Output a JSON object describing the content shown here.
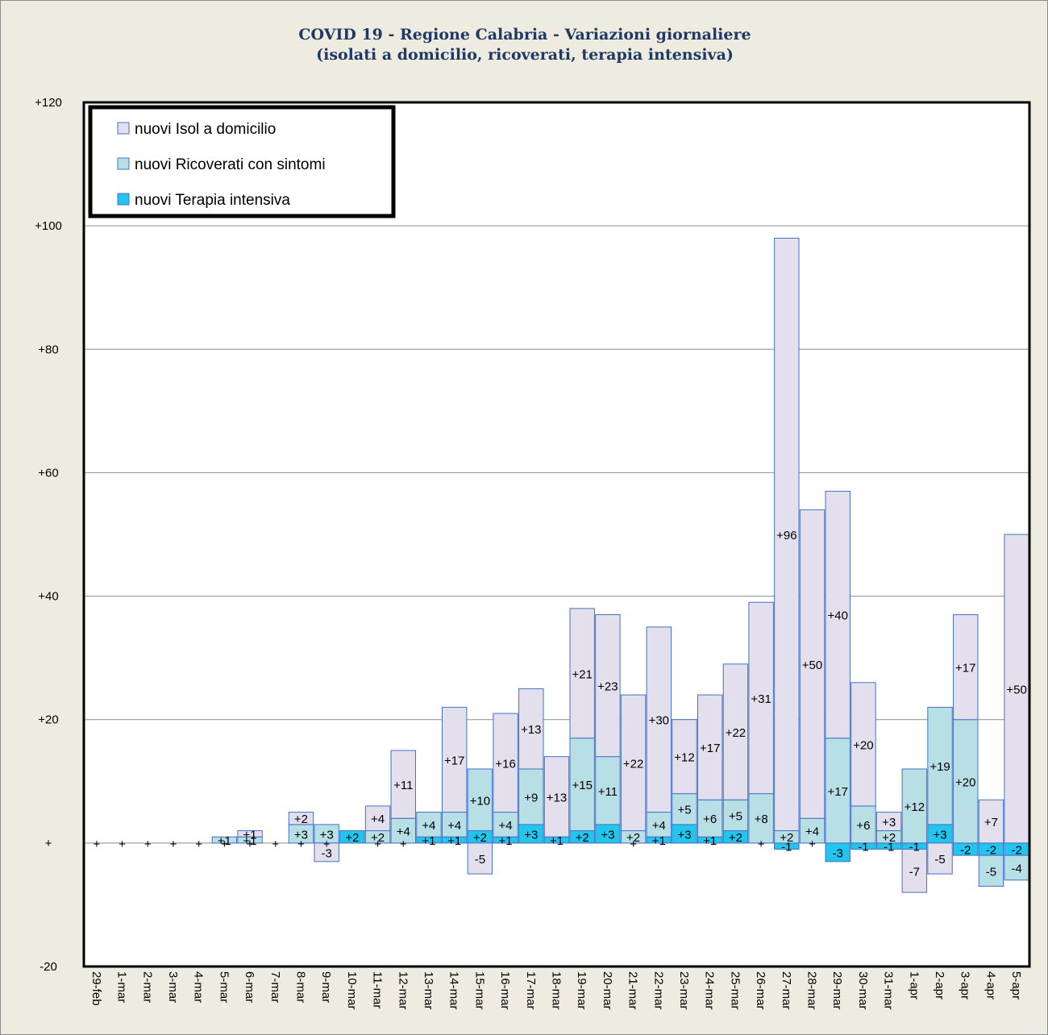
{
  "chart_data": {
    "type": "bar",
    "stacked": true,
    "title": "COVID 19 - Regione Calabria - Variazioni giornaliere",
    "subtitle": "(isolati a domicilio, ricoverati, terapia intensiva)",
    "ylim": [
      -20,
      120
    ],
    "yticks": [
      -20,
      0,
      20,
      40,
      60,
      80,
      100,
      120
    ],
    "ytick_labels": [
      "-20",
      "+",
      "+20",
      "+40",
      "+60",
      "+80",
      "+100",
      "+120"
    ],
    "grid": true,
    "legend_position": "top-left",
    "categories": [
      "29-feb",
      "1-mar",
      "2-mar",
      "3-mar",
      "4-mar",
      "5-mar",
      "6-mar",
      "7-mar",
      "8-mar",
      "9-mar",
      "10-mar",
      "11-mar",
      "12-mar",
      "13-mar",
      "14-mar",
      "15-mar",
      "16-mar",
      "17-mar",
      "18-mar",
      "19-mar",
      "20-mar",
      "21-mar",
      "22-mar",
      "23-mar",
      "24-mar",
      "25-mar",
      "26-mar",
      "27-mar",
      "28-mar",
      "29-mar",
      "30-mar",
      "31-mar",
      "1-apr",
      "2-apr",
      "3-apr",
      "4-apr",
      "5-apr"
    ],
    "series": [
      {
        "name": "nuovi Terapia intensiva",
        "color": "#22c5ee",
        "values": [
          0,
          0,
          0,
          0,
          0,
          0,
          0,
          0,
          0,
          0,
          2,
          0,
          0,
          1,
          1,
          2,
          1,
          3,
          1,
          2,
          3,
          0,
          1,
          3,
          1,
          2,
          0,
          -1,
          0,
          -3,
          -1,
          -1,
          -1,
          3,
          -2,
          -2,
          -2
        ],
        "labels": [
          "+",
          "+",
          "+",
          "+",
          "+",
          "+",
          "+",
          "+",
          "+",
          "+",
          "+2",
          "+",
          "+",
          "+1",
          "+1",
          "+2",
          "+1",
          "+3",
          "+1",
          "+2",
          "+3",
          "+",
          "+1",
          "+3",
          "+1",
          "+2",
          "+",
          "-1",
          "+",
          "-3",
          "-1",
          "-1",
          "-1",
          "+3",
          "-2",
          "-2",
          "-2"
        ]
      },
      {
        "name": "nuovi Ricoverati con sintomi",
        "color": "#b8dee6",
        "values": [
          0,
          0,
          0,
          0,
          0,
          1,
          1,
          0,
          3,
          3,
          0,
          2,
          4,
          4,
          4,
          10,
          4,
          9,
          0,
          15,
          11,
          2,
          4,
          5,
          6,
          5,
          8,
          2,
          4,
          17,
          6,
          2,
          12,
          19,
          20,
          -5,
          -4
        ],
        "labels": [
          "",
          "",
          "",
          "",
          "",
          "+1",
          "+1",
          "",
          "+3",
          "+3",
          "",
          "+2",
          "+4",
          "+4",
          "+4",
          "+10",
          "+4",
          "+9",
          "",
          "+15",
          "+11",
          "+2",
          "+4",
          "+5",
          "+6",
          "+5",
          "+8",
          "+2",
          "+4",
          "+17",
          "+6",
          "+2",
          "+12",
          "+19",
          "+20",
          "-5",
          "-4"
        ]
      },
      {
        "name": "nuovi Isol a domicilio",
        "color": "#e4dfec",
        "values": [
          0,
          0,
          0,
          0,
          0,
          0,
          1,
          0,
          2,
          -3,
          0,
          4,
          11,
          0,
          17,
          -5,
          16,
          13,
          13,
          21,
          23,
          22,
          30,
          12,
          17,
          22,
          31,
          96,
          50,
          40,
          20,
          3,
          -7,
          -5,
          17,
          7,
          50
        ],
        "labels": [
          "",
          "",
          "",
          "",
          "",
          "",
          "+1",
          "",
          "+2",
          "-3",
          "",
          "+4",
          "+11",
          "",
          "+17",
          "-5",
          "+16",
          "+13",
          "+13",
          "+21",
          "+23",
          "+22",
          "+30",
          "+12",
          "+17",
          "+22",
          "+31",
          "+96",
          "+50",
          "+40",
          "+20",
          "+3",
          "-7",
          "-5",
          "+17",
          "+7",
          "+50"
        ]
      }
    ],
    "legend_order": [
      "nuovi Isol a domicilio",
      "nuovi Ricoverati con sintomi",
      "nuovi Terapia intensiva"
    ]
  }
}
